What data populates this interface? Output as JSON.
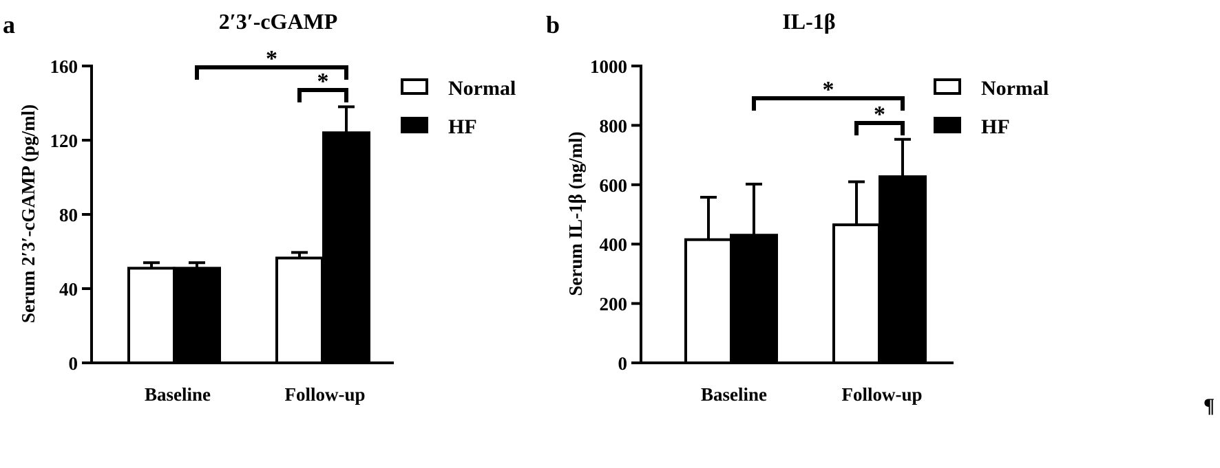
{
  "pilcrow": "¶",
  "chart_data": [
    {
      "type": "bar",
      "panel_label": "a",
      "title": "2′3′-cGAMP",
      "xlabel": "",
      "ylabel": "Serum 2′3′-cGAMP (pg/ml)",
      "categories": [
        "Baseline",
        "Follow-up"
      ],
      "series": [
        {
          "name": "Normal",
          "values": [
            51,
            56.5
          ],
          "errors": [
            3,
            3
          ]
        },
        {
          "name": "HF",
          "values": [
            51,
            124
          ],
          "errors": [
            3,
            14
          ]
        }
      ],
      "ylim": [
        0,
        160
      ],
      "yticks": [
        0,
        40,
        80,
        120,
        160
      ],
      "grid": false,
      "legend": "top-right",
      "significance": [
        {
          "from": [
            0,
            1
          ],
          "to": [
            1,
            1
          ],
          "label": "*"
        },
        {
          "from": [
            1,
            0
          ],
          "to": [
            1,
            1
          ],
          "label": "*"
        }
      ]
    },
    {
      "type": "bar",
      "panel_label": "b",
      "title": "IL-1β",
      "xlabel": "",
      "ylabel": "Serum IL-1β (ng/ml)",
      "categories": [
        "Baseline",
        "Follow-up"
      ],
      "series": [
        {
          "name": "Normal",
          "values": [
            415,
            465
          ],
          "errors": [
            143,
            145
          ]
        },
        {
          "name": "HF",
          "values": [
            430,
            627
          ],
          "errors": [
            172,
            126
          ]
        }
      ],
      "ylim": [
        0,
        1000
      ],
      "yticks": [
        0,
        200,
        400,
        600,
        800,
        1000
      ],
      "grid": false,
      "legend": "top-right",
      "significance": [
        {
          "from": [
            0,
            1
          ],
          "to": [
            1,
            1
          ],
          "label": "*"
        },
        {
          "from": [
            1,
            0
          ],
          "to": [
            1,
            1
          ],
          "label": "*"
        }
      ]
    }
  ]
}
